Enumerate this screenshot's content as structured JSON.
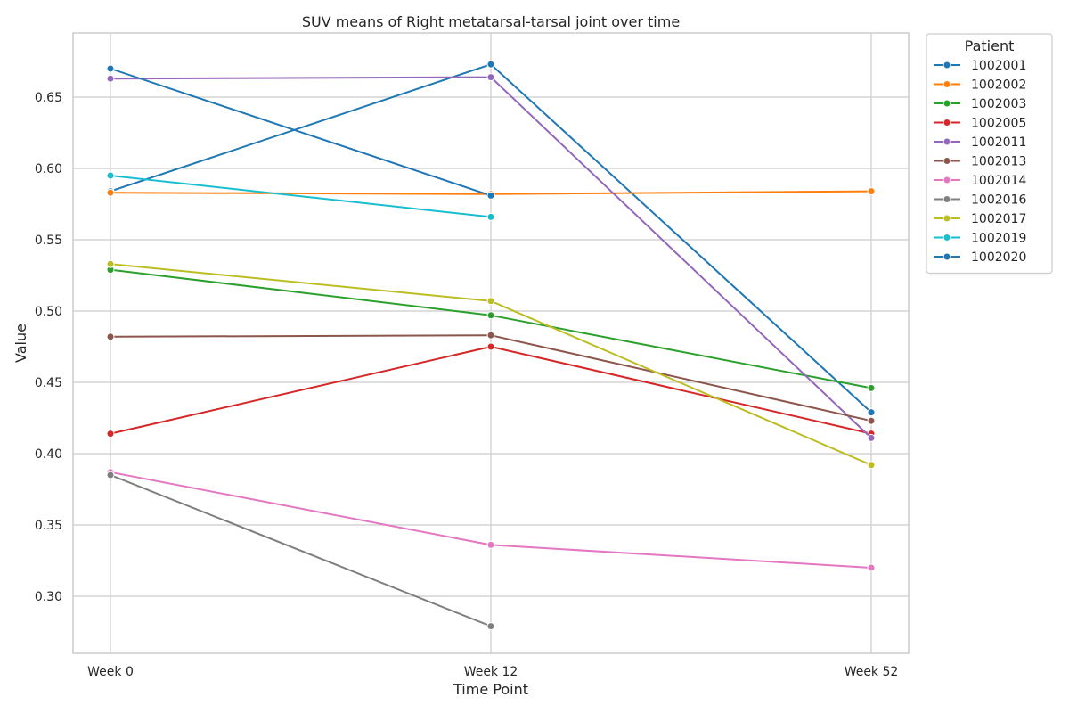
{
  "chart_data": {
    "type": "line",
    "title": "SUV means of Right metatarsal-tarsal joint over time",
    "xlabel": "Time Point",
    "ylabel": "Value",
    "categories": [
      "Week 0",
      "Week 12",
      "Week 52"
    ],
    "ylim": [
      0.26,
      0.695
    ],
    "yticks": [
      "0.30",
      "0.35",
      "0.40",
      "0.45",
      "0.50",
      "0.55",
      "0.60",
      "0.65"
    ],
    "grid": true,
    "legend": {
      "title": "Patient",
      "placement": "outside-top-right"
    },
    "series": [
      {
        "name": "1002001",
        "color": "#1f77b4",
        "values": [
          0.584,
          0.673,
          0.429
        ]
      },
      {
        "name": "1002002",
        "color": "#ff7f0e",
        "values": [
          0.583,
          0.582,
          0.584
        ]
      },
      {
        "name": "1002003",
        "color": "#2ca02c",
        "values": [
          0.529,
          0.497,
          0.446
        ]
      },
      {
        "name": "1002005",
        "color": "#d62728",
        "values": [
          0.414,
          0.475,
          0.414
        ]
      },
      {
        "name": "1002011",
        "color": "#9467bd",
        "values": [
          0.663,
          0.664,
          0.411
        ]
      },
      {
        "name": "1002013",
        "color": "#8c564b",
        "values": [
          0.482,
          0.483,
          0.423
        ]
      },
      {
        "name": "1002014",
        "color": "#e377c2",
        "values": [
          0.387,
          0.336,
          0.32
        ]
      },
      {
        "name": "1002016",
        "color": "#7f7f7f",
        "values": [
          0.385,
          0.279,
          null
        ]
      },
      {
        "name": "1002017",
        "color": "#bcbd22",
        "values": [
          0.533,
          0.507,
          0.392
        ]
      },
      {
        "name": "1002019",
        "color": "#17becf",
        "values": [
          0.595,
          0.566,
          null
        ]
      },
      {
        "name": "1002020",
        "color": "#1f77b4",
        "values": [
          0.67,
          0.581,
          null
        ]
      }
    ]
  }
}
